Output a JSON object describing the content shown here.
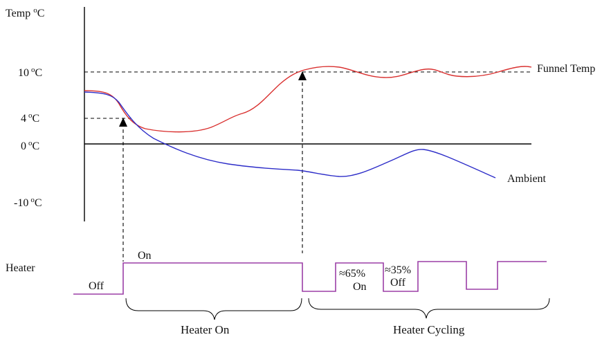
{
  "temp_axis": {
    "title": "Temp",
    "title_unit": "C",
    "ticks": [
      {
        "value": "10",
        "unit": "C"
      },
      {
        "value": "4",
        "unit": "C"
      },
      {
        "value": "0",
        "unit": "C"
      },
      {
        "value": "-10",
        "unit": "C"
      }
    ]
  },
  "curves": {
    "funnel_label": "Funnel Temp",
    "ambient_label": "Ambient",
    "funnel_color": "#d9302f",
    "ambient_color": "#2c2cc8"
  },
  "heater": {
    "label": "Heater",
    "off_label": "Off",
    "on_label": "On",
    "duty_on_pct": "≈65%",
    "duty_on_word": "On",
    "duty_off_pct": "≈35%",
    "duty_off_word": "Off",
    "color": "#9b3fa6"
  },
  "phases": {
    "heater_on": "Heater On",
    "heater_cycling": "Heater Cycling"
  }
}
